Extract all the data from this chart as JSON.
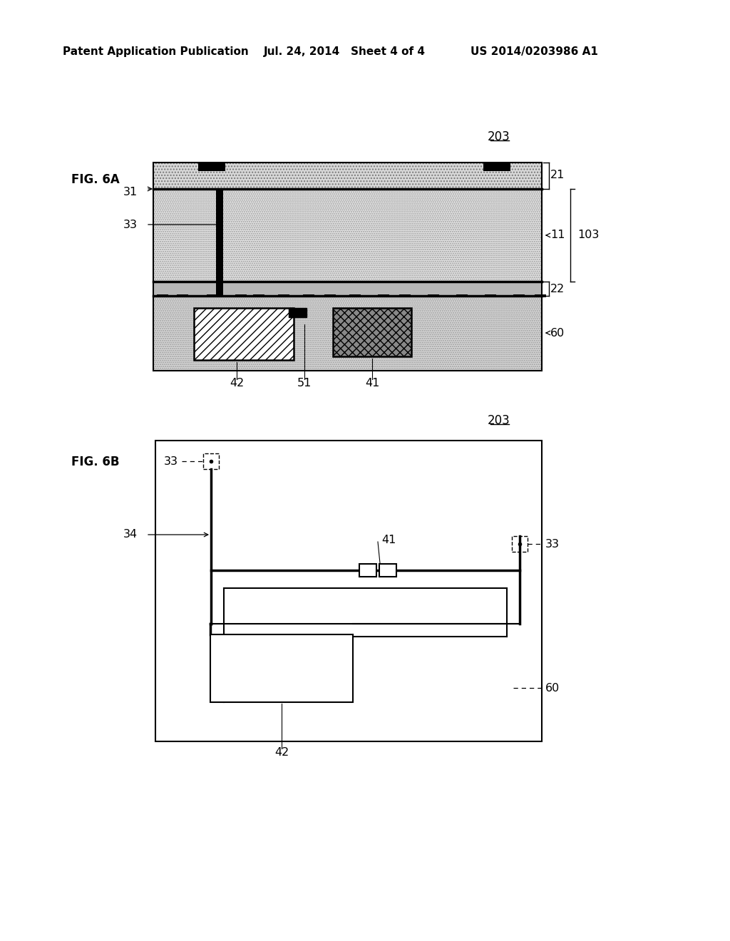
{
  "bg_color": "#ffffff",
  "header_left": "Patent Application Publication",
  "header_mid": "Jul. 24, 2014   Sheet 4 of 4",
  "header_right": "US 2014/0203986 A1",
  "fig6a_label": "FIG. 6A",
  "fig6b_label": "FIG. 6B",
  "label_203": "203",
  "label_31": "31",
  "label_21": "21",
  "label_33a": "33",
  "label_11": "11",
  "label_103": "103",
  "label_22": "22",
  "label_60a": "60",
  "label_42a": "42",
  "label_51": "51",
  "label_41a": "41",
  "label_33b": "33",
  "label_34": "34",
  "label_41b": "41",
  "label_60b": "60",
  "label_42b": "42",
  "label_33c": "33"
}
